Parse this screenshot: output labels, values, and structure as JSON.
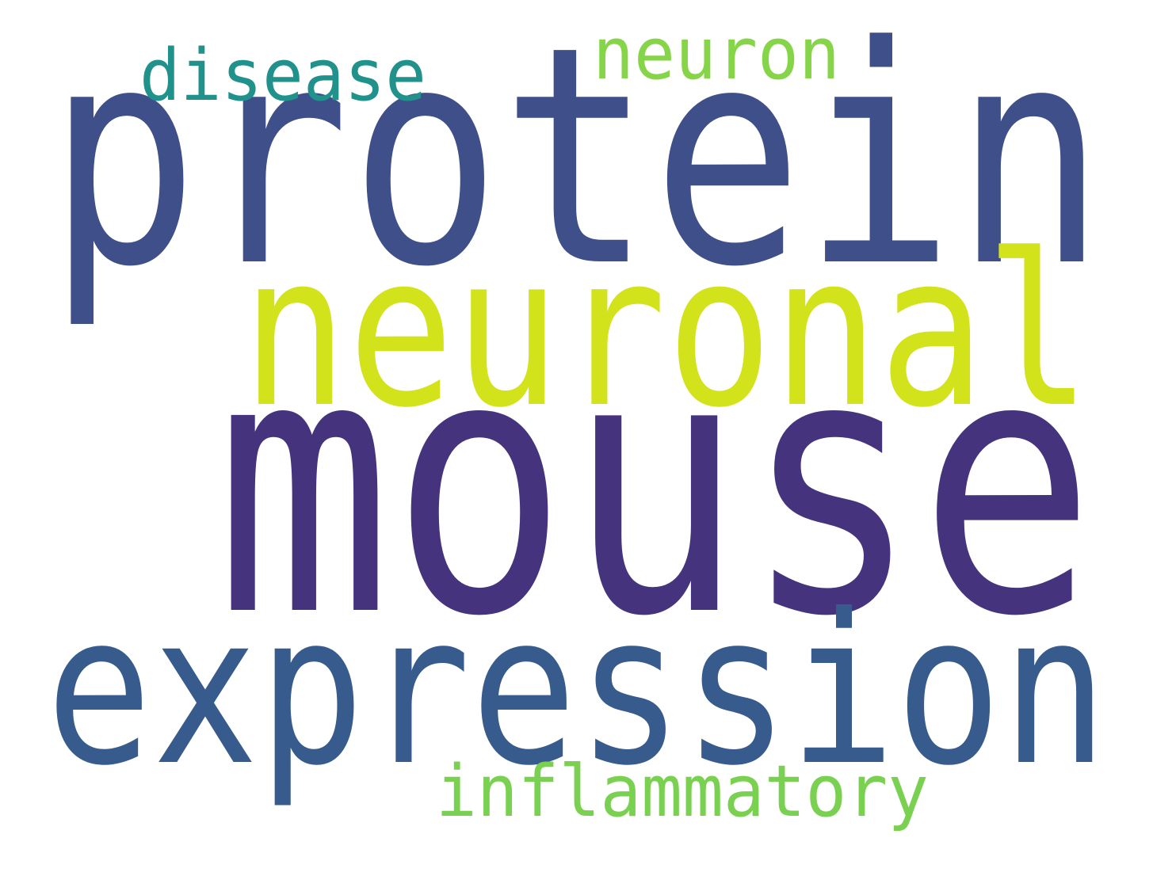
{
  "words": [
    {
      "key": "protein",
      "text": "protein",
      "color": "#3e4f8a"
    },
    {
      "key": "mouse",
      "text": "mouse",
      "color": "#46337e"
    },
    {
      "key": "neuronal",
      "text": "neuronal",
      "color": "#d2e21b"
    },
    {
      "key": "expression",
      "text": "expression",
      "color": "#375b8d"
    },
    {
      "key": "disease",
      "text": "disease",
      "color": "#21918c"
    },
    {
      "key": "neuron",
      "text": "neuron",
      "color": "#86d549"
    },
    {
      "key": "inflammatory",
      "text": "inflammatory",
      "color": "#7ad151"
    }
  ]
}
